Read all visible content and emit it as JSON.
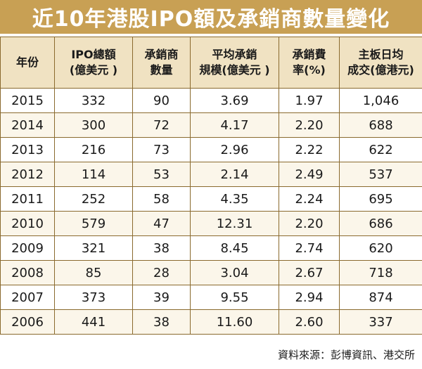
{
  "title": "近10年港股IPO額及承銷商數量變化",
  "header": {
    "col_year": "年份",
    "col_ipo": [
      "IPO總額",
      "(億美元 )"
    ],
    "col_underwriters": [
      "承銷商",
      "數量"
    ],
    "col_avg": [
      "平均承銷",
      "規模(億美元 )"
    ],
    "col_fee": [
      "承銷費",
      "率(%)"
    ],
    "col_turnover": [
      "主板日均",
      "成交(億港元)"
    ]
  },
  "rows": [
    {
      "year": "2015",
      "ipo": "332",
      "underwriters": "90",
      "avg": "3.69",
      "fee": "1.97",
      "turnover": "1,046"
    },
    {
      "year": "2014",
      "ipo": "300",
      "underwriters": "72",
      "avg": "4.17",
      "fee": "2.20",
      "turnover": "688"
    },
    {
      "year": "2013",
      "ipo": "216",
      "underwriters": "73",
      "avg": "2.96",
      "fee": "2.22",
      "turnover": "622"
    },
    {
      "year": "2012",
      "ipo": "114",
      "underwriters": "53",
      "avg": "2.14",
      "fee": "2.49",
      "turnover": "537"
    },
    {
      "year": "2011",
      "ipo": "252",
      "underwriters": "58",
      "avg": "4.35",
      "fee": "2.24",
      "turnover": "695"
    },
    {
      "year": "2010",
      "ipo": "579",
      "underwriters": "47",
      "avg": "12.31",
      "fee": "2.20",
      "turnover": "686"
    },
    {
      "year": "2009",
      "ipo": "321",
      "underwriters": "38",
      "avg": "8.45",
      "fee": "2.74",
      "turnover": "620"
    },
    {
      "year": "2008",
      "ipo": "85",
      "underwriters": "28",
      "avg": "3.04",
      "fee": "2.67",
      "turnover": "718"
    },
    {
      "year": "2007",
      "ipo": "373",
      "underwriters": "39",
      "avg": "9.55",
      "fee": "2.94",
      "turnover": "874"
    },
    {
      "year": "2006",
      "ipo": "441",
      "underwriters": "38",
      "avg": "11.60",
      "fee": "2.60",
      "turnover": "337"
    }
  ],
  "source": "資料來源：彭博資訊、港交所",
  "colors": {
    "title_bg": "#c8a054",
    "header_bg": "#f0e2c2",
    "border": "#8a6a2e"
  }
}
